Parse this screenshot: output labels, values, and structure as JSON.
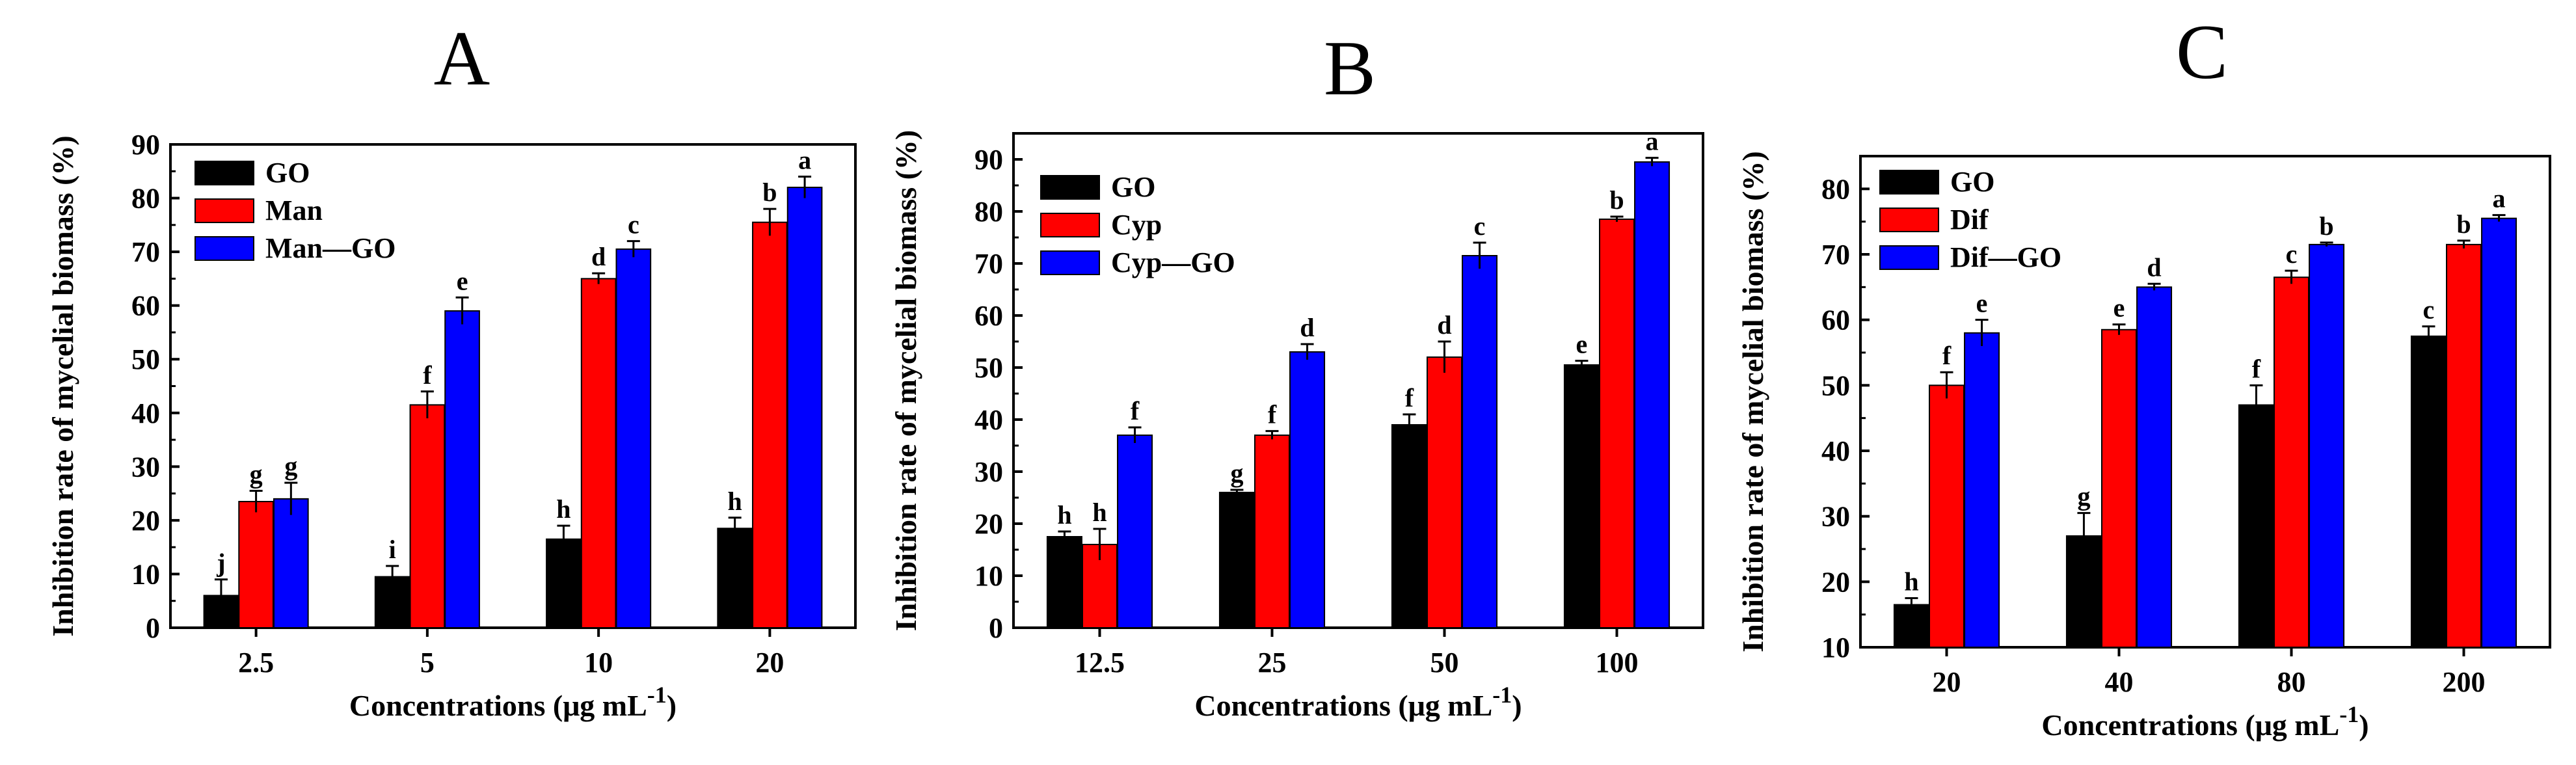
{
  "chart_data": [
    {
      "type": "bar",
      "title": "A",
      "xlabel": "Concentrations (μg mL",
      "xlabel_sup": "-1",
      "xlabel_close": ")",
      "ylabel": "Inhibition rate of mycelial biomass (%)",
      "ylim": [
        0,
        90
      ],
      "yticks": [
        0,
        10,
        20,
        30,
        40,
        50,
        60,
        70,
        80,
        90
      ],
      "categories": [
        "2.5",
        "5",
        "10",
        "20"
      ],
      "legend_position": "top-left",
      "series": [
        {
          "name": "GO",
          "color": "#000000",
          "values": [
            6,
            9.5,
            16.5,
            18.5
          ],
          "errors": [
            3,
            2,
            2.5,
            2
          ],
          "letters": [
            "j",
            "i",
            "h",
            "h"
          ]
        },
        {
          "name": "Man",
          "color": "#ff0000",
          "values": [
            23.5,
            41.5,
            65,
            75.5
          ],
          "errors": [
            2,
            2.5,
            1,
            2.5
          ],
          "letters": [
            "g",
            "f",
            "d",
            "b"
          ]
        },
        {
          "name": "Man—GO",
          "color": "#0000ff",
          "values": [
            24,
            59,
            70.5,
            82
          ],
          "errors": [
            3,
            2.5,
            1.5,
            2
          ],
          "letters": [
            "g",
            "e",
            "c",
            "a"
          ]
        }
      ]
    },
    {
      "type": "bar",
      "title": "B",
      "xlabel": "Concentrations (μg mL",
      "xlabel_sup": "-1",
      "xlabel_close": ")",
      "ylabel": "Inhibition rate of mycelial biomass (%)",
      "ylim": [
        0,
        95
      ],
      "yticks": [
        0,
        10,
        20,
        30,
        40,
        50,
        60,
        70,
        80,
        90
      ],
      "categories": [
        "12.5",
        "25",
        "50",
        "100"
      ],
      "legend_position": "top-left",
      "series": [
        {
          "name": "GO",
          "color": "#000000",
          "values": [
            17.5,
            26,
            39,
            50.5
          ],
          "errors": [
            1,
            0.5,
            2,
            0.8
          ],
          "letters": [
            "h",
            "g",
            "f",
            "e"
          ]
        },
        {
          "name": "Cyp",
          "color": "#ff0000",
          "values": [
            16,
            37,
            52,
            78.5
          ],
          "errors": [
            3,
            0.8,
            3,
            0.5
          ],
          "letters": [
            "h",
            "f",
            "d",
            "b"
          ]
        },
        {
          "name": "Cyp—GO",
          "color": "#0000ff",
          "values": [
            37,
            53,
            71.5,
            89.5
          ],
          "errors": [
            1.5,
            1.5,
            2.5,
            0.8
          ],
          "letters": [
            "f",
            "d",
            "c",
            "a"
          ]
        }
      ]
    },
    {
      "type": "bar",
      "title": "C",
      "xlabel": "Concentrations (μg mL",
      "xlabel_sup": "-1",
      "xlabel_close": ")",
      "ylabel": "Inhibition rate of mycelial biomass (%)",
      "ylim": [
        10,
        85
      ],
      "yticks": [
        10,
        20,
        30,
        40,
        50,
        60,
        70,
        80
      ],
      "categories": [
        "20",
        "40",
        "80",
        "200"
      ],
      "legend_position": "top-left",
      "series": [
        {
          "name": "GO",
          "color": "#000000",
          "values": [
            16.5,
            27,
            47,
            57.5
          ],
          "errors": [
            1,
            3.5,
            3,
            1.5
          ],
          "letters": [
            "h",
            "g",
            "f",
            "c"
          ]
        },
        {
          "name": "Dif",
          "color": "#ff0000",
          "values": [
            50,
            58.5,
            66.5,
            71.5
          ],
          "errors": [
            2,
            0.8,
            1,
            0.6
          ],
          "letters": [
            "f",
            "e",
            "c",
            "b"
          ]
        },
        {
          "name": "Dif—GO",
          "color": "#0000ff",
          "values": [
            58,
            65,
            71.5,
            75.5
          ],
          "errors": [
            2,
            0.5,
            0.3,
            0.5
          ],
          "letters": [
            "e",
            "d",
            "b",
            "a"
          ]
        }
      ]
    }
  ]
}
